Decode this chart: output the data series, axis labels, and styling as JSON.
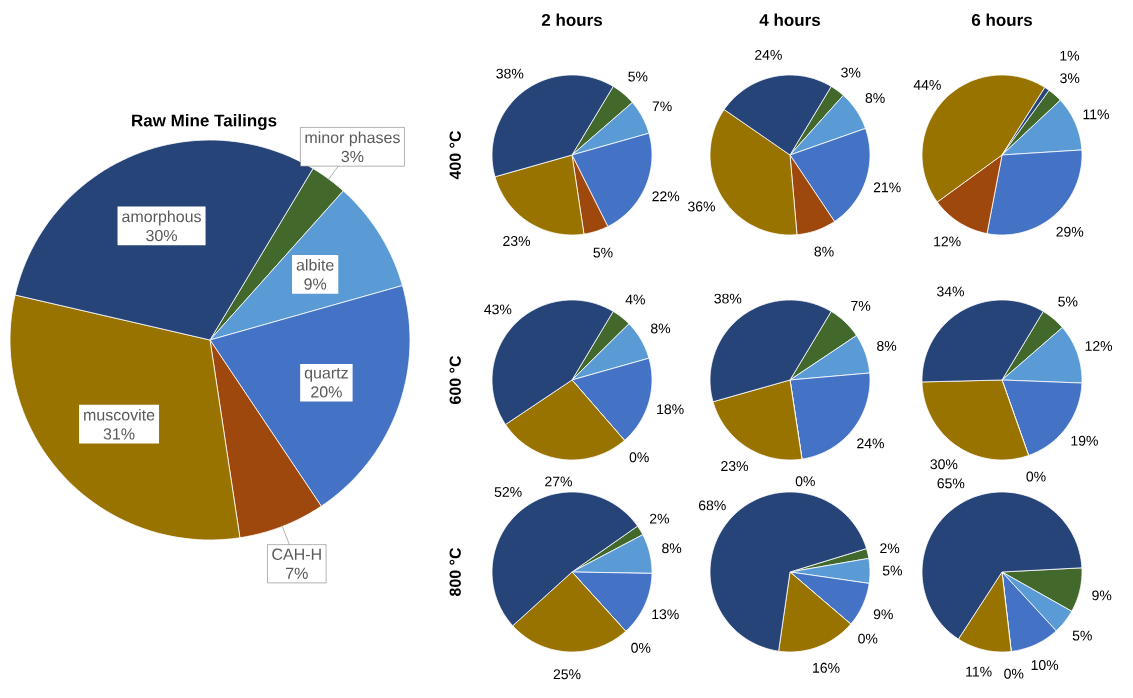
{
  "chart_data": [
    {
      "type": "pie",
      "title": "Raw Mine Tailings",
      "categories": [
        "minor phases",
        "albite",
        "quartz",
        "CAH-H",
        "muscovite",
        "amorphous"
      ],
      "values": [
        3,
        9,
        20,
        7,
        31,
        30
      ],
      "value_labels": [
        "3%",
        "9%",
        "20%",
        "7%",
        "31%",
        "30%"
      ],
      "colors": [
        "#43682b",
        "#5b9bd5",
        "#4472c4",
        "#9e480e",
        "#997300",
        "#264478"
      ]
    },
    {
      "type": "pie",
      "title": "2 hours",
      "ylabel": "400 °C",
      "categories": [
        null,
        null,
        null,
        null,
        null,
        null
      ],
      "values": [
        5,
        7,
        22,
        5,
        23,
        38
      ],
      "value_labels": [
        "5%",
        "7%",
        "22%",
        "5%",
        "23%",
        "38%"
      ],
      "colors": [
        "#43682b",
        "#5b9bd5",
        "#4472c4",
        "#9e480e",
        "#997300",
        "#264478"
      ]
    },
    {
      "type": "pie",
      "title": "4 hours",
      "categories": [
        null,
        null,
        null,
        null,
        null,
        null
      ],
      "values": [
        3,
        8,
        21,
        8,
        36,
        24
      ],
      "value_labels": [
        "3%",
        "8%",
        "21%",
        "8%",
        "36%",
        "24%"
      ],
      "colors": [
        "#43682b",
        "#5b9bd5",
        "#4472c4",
        "#9e480e",
        "#997300",
        "#264478"
      ]
    },
    {
      "type": "pie",
      "title": "6 hours",
      "categories": [
        null,
        null,
        null,
        null,
        null,
        null
      ],
      "values": [
        3,
        11,
        29,
        12,
        44,
        1
      ],
      "value_labels": [
        "3%",
        "11%",
        "29%",
        "12%",
        "44%",
        "1%"
      ],
      "colors": [
        "#43682b",
        "#5b9bd5",
        "#4472c4",
        "#9e480e",
        "#997300",
        "#264478"
      ]
    },
    {
      "type": "pie",
      "ylabel": "600 °C",
      "categories": [
        null,
        null,
        null,
        null,
        null,
        null
      ],
      "values": [
        4,
        8,
        18,
        0,
        27,
        43
      ],
      "value_labels": [
        "4%",
        "8%",
        "18%",
        "0%",
        "27%",
        "43%"
      ],
      "colors": [
        "#43682b",
        "#5b9bd5",
        "#4472c4",
        "#9e480e",
        "#997300",
        "#264478"
      ]
    },
    {
      "type": "pie",
      "categories": [
        null,
        null,
        null,
        null,
        null,
        null
      ],
      "values": [
        7,
        8,
        24,
        0,
        23,
        38
      ],
      "value_labels": [
        "7%",
        "8%",
        "24%",
        "0%",
        "23%",
        "38%"
      ],
      "colors": [
        "#43682b",
        "#5b9bd5",
        "#4472c4",
        "#9e480e",
        "#997300",
        "#264478"
      ]
    },
    {
      "type": "pie",
      "categories": [
        null,
        null,
        null,
        null,
        null,
        null
      ],
      "values": [
        5,
        12,
        19,
        0,
        30,
        34
      ],
      "value_labels": [
        "5%",
        "12%",
        "19%",
        "0%",
        "30%",
        "34%"
      ],
      "colors": [
        "#43682b",
        "#5b9bd5",
        "#4472c4",
        "#9e480e",
        "#997300",
        "#264478"
      ]
    },
    {
      "type": "pie",
      "ylabel": "800 °C",
      "categories": [
        null,
        null,
        null,
        null,
        null,
        null
      ],
      "values": [
        2,
        8,
        13,
        0,
        25,
        52
      ],
      "value_labels": [
        "2%",
        "8%",
        "13%",
        "0%",
        "25%",
        "52%"
      ],
      "colors": [
        "#43682b",
        "#5b9bd5",
        "#4472c4",
        "#9e480e",
        "#997300",
        "#264478"
      ]
    },
    {
      "type": "pie",
      "categories": [
        null,
        null,
        null,
        null,
        null,
        null
      ],
      "values": [
        2,
        5,
        9,
        0,
        16,
        68
      ],
      "value_labels": [
        "2%",
        "5%",
        "9%",
        "0%",
        "16%",
        "68%"
      ],
      "colors": [
        "#43682b",
        "#5b9bd5",
        "#4472c4",
        "#9e480e",
        "#997300",
        "#264478"
      ]
    },
    {
      "type": "pie",
      "categories": [
        null,
        null,
        null,
        null,
        null,
        null
      ],
      "values": [
        9,
        5,
        10,
        0,
        11,
        65
      ],
      "value_labels": [
        "9%",
        "5%",
        "10%",
        "0%",
        "11%",
        "65%"
      ],
      "colors": [
        "#43682b",
        "#5b9bd5",
        "#4472c4",
        "#9e480e",
        "#997300",
        "#264478"
      ]
    }
  ]
}
